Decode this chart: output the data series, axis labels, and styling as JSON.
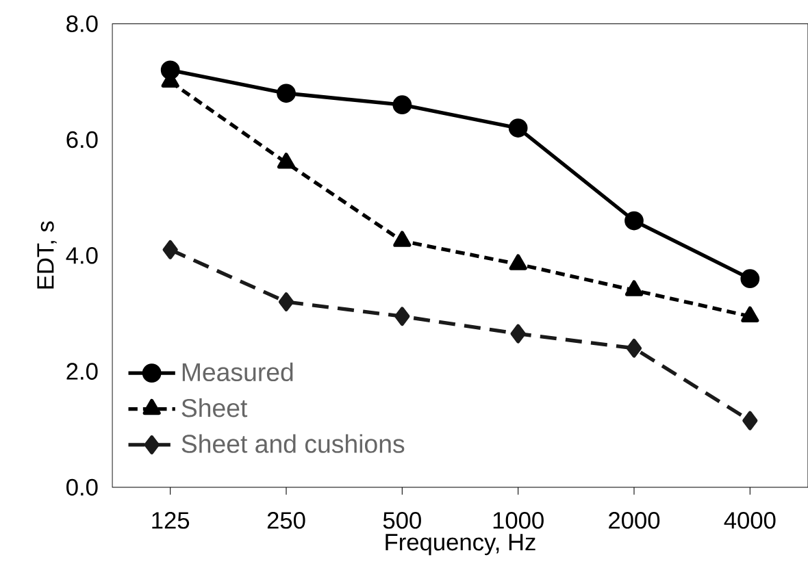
{
  "chart_data": {
    "type": "line",
    "xlabel": "Frequency, Hz",
    "ylabel": "EDT, s",
    "categories": [
      "125",
      "250",
      "500",
      "1000",
      "2000",
      "4000"
    ],
    "series": [
      {
        "name": "Measured",
        "color": "#000000",
        "marker": "circle",
        "line_style": "solid",
        "values": [
          7.2,
          6.8,
          6.6,
          6.2,
          4.6,
          3.6
        ]
      },
      {
        "name": "Sheet",
        "color": "#000000",
        "marker": "triangle",
        "line_style": "dotted",
        "values": [
          7.0,
          5.6,
          4.25,
          3.85,
          3.4,
          2.95
        ]
      },
      {
        "name": "Sheet and cushions",
        "color": "#1a1a1a",
        "marker": "diamond",
        "line_style": "dashed",
        "values": [
          4.1,
          3.2,
          2.95,
          2.65,
          2.4,
          1.15
        ]
      }
    ],
    "ylim": [
      0,
      8
    ],
    "yticks": [
      {
        "value": 0,
        "label": "0.0"
      },
      {
        "value": 2,
        "label": "2.0"
      },
      {
        "value": 4,
        "label": "4.0"
      },
      {
        "value": 6,
        "label": "6.0"
      },
      {
        "value": 8,
        "label": "8.0"
      }
    ],
    "grid": false,
    "legend": "bottom left"
  }
}
